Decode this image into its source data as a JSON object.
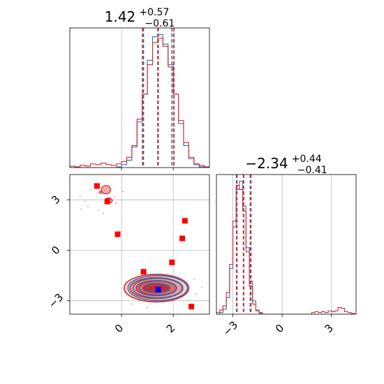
{
  "chart_data": [
    {
      "type": "histogram",
      "panel": "marginal-x",
      "title": {
        "value": "1.42",
        "upper": "+0.57",
        "lower": "−0.61"
      },
      "xlim": [
        -2.0,
        3.4
      ],
      "grid": true,
      "bin_edges": [
        -2.0,
        -1.8,
        -1.6,
        -1.4,
        -1.2,
        -1.0,
        -0.8,
        -0.6,
        -0.4,
        -0.2,
        0.0,
        0.2,
        0.4,
        0.6,
        0.8,
        1.0,
        1.2,
        1.4,
        1.6,
        1.8,
        2.0,
        2.2,
        2.4,
        2.6,
        2.8,
        3.0,
        3.2,
        3.4
      ],
      "series": [
        {
          "color": "#1f77b4",
          "counts": [
            0,
            0,
            0,
            0,
            0,
            0,
            0,
            0,
            0,
            1,
            4,
            10,
            28,
            62,
            100,
            146,
            178,
            181,
            168,
            140,
            100,
            60,
            30,
            12,
            4,
            1,
            0
          ],
          "quantiles": [
            0.85,
            1.4,
            1.95
          ]
        },
        {
          "color": "#d62728",
          "counts": [
            2,
            1,
            3,
            2,
            5,
            4,
            6,
            4,
            3,
            5,
            8,
            14,
            30,
            66,
            100,
            140,
            170,
            176,
            165,
            137,
            100,
            64,
            34,
            14,
            5,
            3,
            1
          ],
          "quantiles": [
            0.81,
            1.42,
            2.03
          ]
        }
      ]
    },
    {
      "type": "histogram",
      "panel": "marginal-y",
      "title": {
        "value": "−2.34",
        "upper": "+0.44",
        "lower": "−0.41"
      },
      "xlim": [
        -4.0,
        4.5
      ],
      "xticks": [
        "−3",
        "0",
        "3"
      ],
      "xtick_values": [
        -3,
        0,
        3
      ],
      "grid": true,
      "bin_edges": [
        -4.0,
        -3.8,
        -3.6,
        -3.4,
        -3.2,
        -3.0,
        -2.8,
        -2.6,
        -2.4,
        -2.2,
        -2.0,
        -1.8,
        -1.6,
        -1.4,
        -1.2,
        -1.0,
        -0.8,
        -0.6,
        -0.4,
        -0.2,
        0.0,
        0.2,
        0.4,
        0.6,
        0.8,
        1.0,
        1.2,
        1.4,
        1.6,
        1.8,
        2.0,
        2.2,
        2.4,
        2.6,
        2.8,
        3.0,
        3.2,
        3.4,
        3.6,
        3.8,
        4.0,
        4.2,
        4.4
      ],
      "series": [
        {
          "color": "#1f77b4",
          "counts": [
            0,
            2,
            6,
            20,
            55,
            105,
            150,
            160,
            130,
            80,
            40,
            16,
            5,
            1,
            0,
            0,
            0,
            0,
            0,
            0,
            0,
            0,
            0,
            0,
            0,
            0,
            0,
            0,
            0,
            0,
            0,
            0,
            0,
            0,
            0,
            0,
            0,
            0,
            0,
            0,
            0,
            0
          ],
          "quantiles": [
            -2.78,
            -2.36,
            -1.94
          ]
        },
        {
          "color": "#d62728",
          "counts": [
            2,
            5,
            10,
            26,
            60,
            112,
            155,
            150,
            124,
            75,
            34,
            12,
            4,
            2,
            0,
            0,
            0,
            0,
            0,
            0,
            0,
            0,
            0,
            0,
            0,
            0,
            0,
            0,
            0,
            2,
            3,
            2,
            3,
            2,
            4,
            3,
            4,
            8,
            7,
            3,
            2,
            1
          ],
          "quantiles": [
            -2.75,
            -2.34,
            -1.9
          ]
        }
      ]
    },
    {
      "type": "scatter",
      "panel": "joint",
      "xlim": [
        -2.0,
        3.4
      ],
      "ylim": [
        -3.8,
        4.5
      ],
      "xticks": [
        "0",
        "2"
      ],
      "xtick_values": [
        0,
        2
      ],
      "yticks": [
        "−3",
        "0",
        "3"
      ],
      "ytick_values": [
        -3,
        0,
        3
      ],
      "grid": true,
      "density_contours": [
        {
          "color": "#d62728",
          "center": [
            1.35,
            -2.25
          ],
          "radii": [
            [
              0.52,
              0.28
            ],
            [
              0.78,
              0.45
            ],
            [
              1.02,
              0.62
            ],
            [
              1.25,
              0.82
            ]
          ],
          "fills": [
            "#d0272a",
            "#e2676b",
            "#ee9b9d",
            "#f8cfd0"
          ]
        },
        {
          "color": "#1f77b4",
          "center": [
            1.4,
            -2.25
          ],
          "radii": [
            [
              0.45,
              0.25
            ],
            [
              0.72,
              0.42
            ],
            [
              0.95,
              0.58
            ],
            [
              1.15,
              0.74
            ]
          ]
        }
      ],
      "outlier_contours": [
        {
          "color": "#d62728",
          "center": [
            -0.6,
            3.6
          ],
          "radii": [
            0.18,
            0.25
          ]
        },
        {
          "color": "#d62728",
          "center": [
            -0.5,
            2.95
          ],
          "radii": [
            0.14,
            0.16
          ]
        },
        {
          "color": "#d62728",
          "center": [
            -0.8,
            3.45
          ],
          "radii": [
            0.06,
            0.06
          ]
        }
      ],
      "points_red": [
        [
          -0.95,
          3.82
        ],
        [
          -0.55,
          2.9
        ],
        [
          -0.15,
          0.95
        ],
        [
          0.85,
          -1.28
        ],
        [
          1.95,
          -0.72
        ],
        [
          2.35,
          0.7
        ],
        [
          2.45,
          1.75
        ],
        [
          2.7,
          -3.35
        ]
      ],
      "point_blue": [
        1.42,
        -2.34
      ],
      "background_scatter": [
        [
          -1.6,
          3.2
        ],
        [
          -1.3,
          2.6
        ],
        [
          -1.2,
          3.6
        ],
        [
          -0.9,
          2.4
        ],
        [
          -0.7,
          2.2
        ],
        [
          -0.2,
          2.8
        ],
        [
          0.05,
          3.5
        ],
        [
          -1.4,
          2.9
        ],
        [
          -1.55,
          2.45
        ],
        [
          -0.3,
          3.15
        ],
        [
          0.7,
          -1.6
        ],
        [
          0.5,
          -2.1
        ],
        [
          0.3,
          -2.6
        ],
        [
          2.8,
          -1.7
        ],
        [
          2.9,
          -2.6
        ],
        [
          0.2,
          -1.9
        ],
        [
          3.1,
          -2.2
        ],
        [
          0.4,
          -3.2
        ],
        [
          2.6,
          -3.0
        ],
        [
          1.0,
          -3.4
        ]
      ]
    }
  ]
}
